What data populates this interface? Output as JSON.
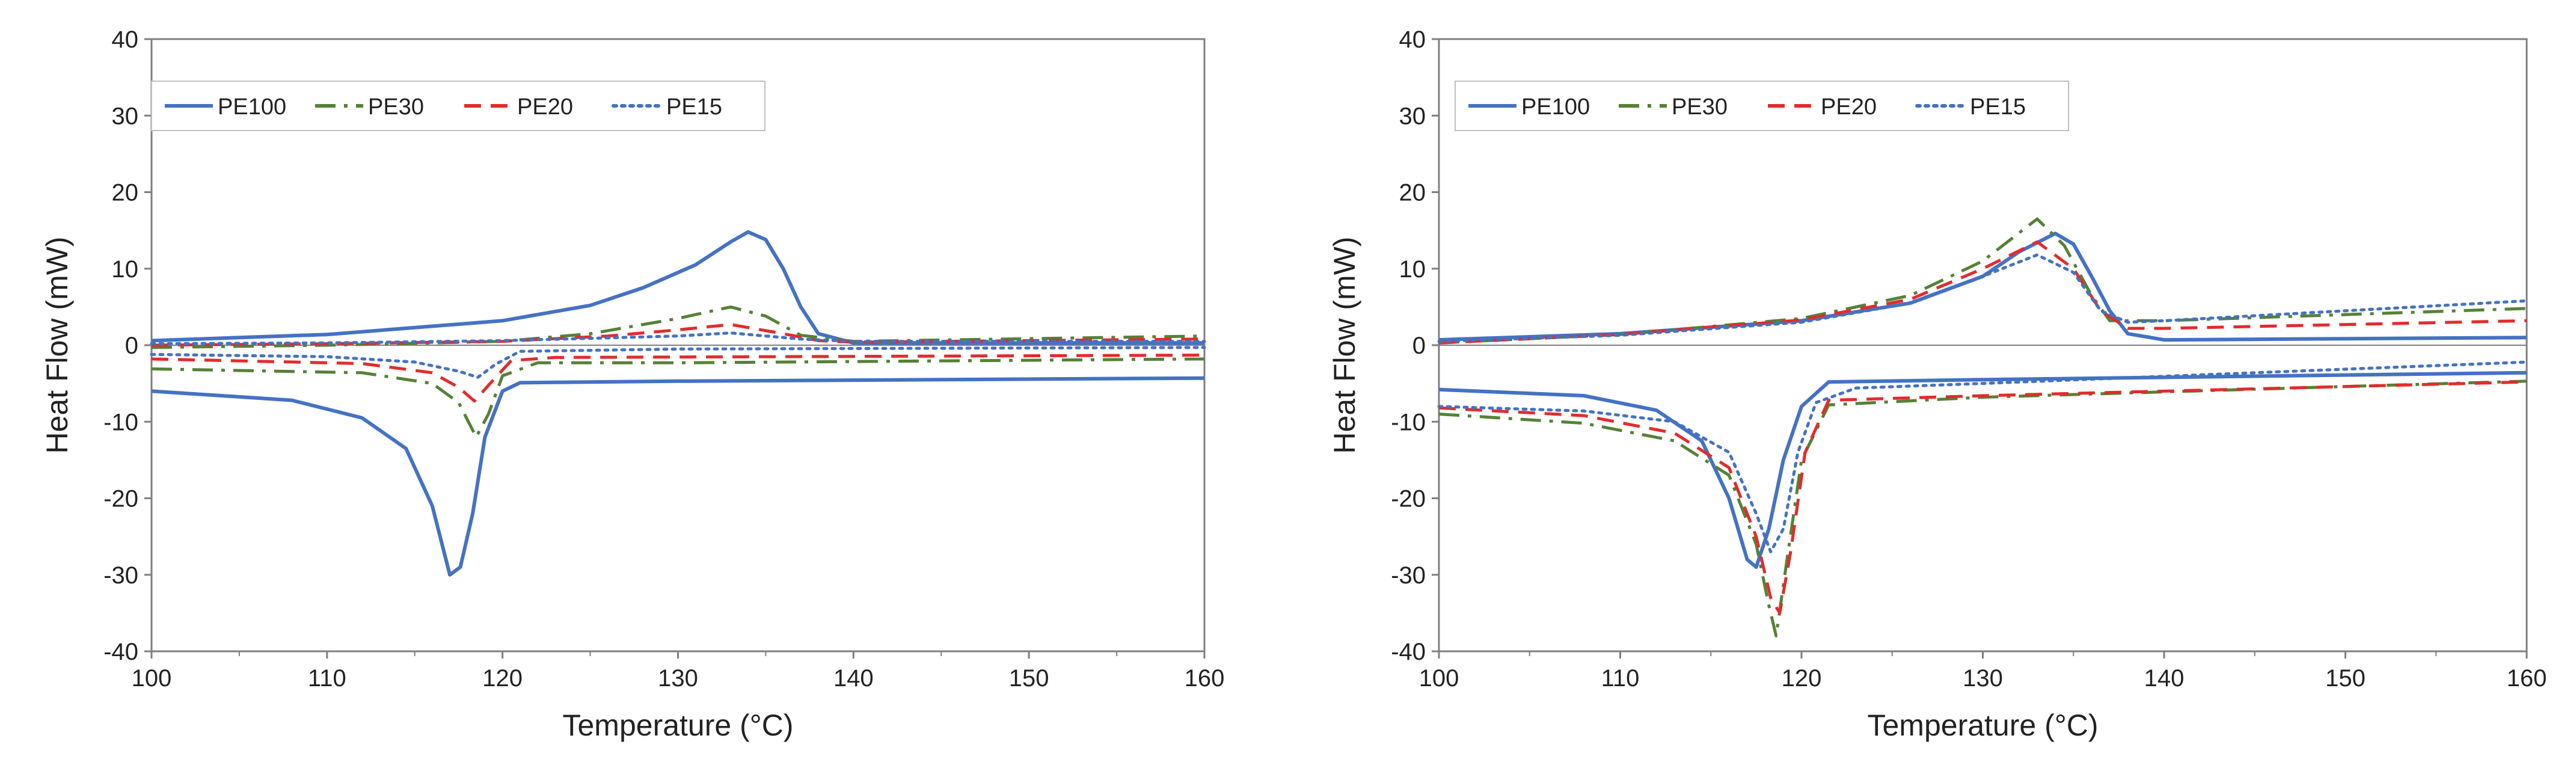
{
  "colors": {
    "PE100": "#4472c4",
    "PE30": "#548235",
    "PE20": "#e32b2b",
    "PE15": "#4472c4",
    "frame": "#7f7f7f"
  },
  "chart_data": [
    {
      "type": "line",
      "title": "",
      "xlabel": "Temperature (°C)",
      "ylabel": "Heat Flow (mW)",
      "xlim": [
        100,
        160
      ],
      "ylim": [
        -40,
        40
      ],
      "xticks": [
        100,
        110,
        120,
        130,
        140,
        150,
        160
      ],
      "yticks": [
        -40,
        -30,
        -20,
        -10,
        0,
        10,
        20,
        30,
        40
      ],
      "legend": [
        "PE100",
        "PE30",
        "PE20",
        "PE15"
      ],
      "legend_position": "top-left",
      "series": [
        {
          "name": "PE100",
          "style": "solid",
          "segments": [
            [
              [
                100,
                0.6
              ],
              [
                110,
                1.4
              ],
              [
                120,
                3.2
              ],
              [
                125,
                5.2
              ],
              [
                128,
                7.5
              ],
              [
                131,
                10.5
              ],
              [
                133,
                13.5
              ],
              [
                134,
                14.8
              ],
              [
                135,
                13.8
              ],
              [
                136,
                10
              ],
              [
                137,
                5
              ],
              [
                138,
                1.5
              ],
              [
                140,
                0.3
              ],
              [
                160,
                0.3
              ]
            ],
            [
              [
                100,
                -6.0
              ],
              [
                108,
                -7.2
              ],
              [
                112,
                -9.5
              ],
              [
                114.5,
                -13.5
              ],
              [
                116,
                -21
              ],
              [
                117,
                -30
              ],
              [
                117.6,
                -29
              ],
              [
                118.3,
                -22
              ],
              [
                119,
                -12
              ],
              [
                120,
                -6
              ],
              [
                121,
                -4.9
              ],
              [
                130,
                -4.7
              ],
              [
                160,
                -4.3
              ]
            ]
          ]
        },
        {
          "name": "PE30",
          "style": "dashdot",
          "segments": [
            [
              [
                100,
                -0.3
              ],
              [
                110,
                0
              ],
              [
                120,
                0.5
              ],
              [
                125,
                1.5
              ],
              [
                130,
                3.5
              ],
              [
                133,
                5.0
              ],
              [
                135,
                3.8
              ],
              [
                137,
                1.3
              ],
              [
                140,
                0.5
              ],
              [
                160,
                1.2
              ]
            ],
            [
              [
                100,
                -3.1
              ],
              [
                112,
                -3.6
              ],
              [
                116,
                -5.0
              ],
              [
                117.5,
                -7.5
              ],
              [
                118.5,
                -12
              ],
              [
                119.2,
                -9
              ],
              [
                120,
                -4
              ],
              [
                122,
                -2.3
              ],
              [
                130,
                -2.3
              ],
              [
                160,
                -1.8
              ]
            ]
          ]
        },
        {
          "name": "PE20",
          "style": "dashed",
          "segments": [
            [
              [
                100,
                0
              ],
              [
                110,
                0.2
              ],
              [
                120,
                0.5
              ],
              [
                126,
                1.2
              ],
              [
                130,
                2.0
              ],
              [
                133,
                2.7
              ],
              [
                136,
                1.5
              ],
              [
                138,
                0.6
              ],
              [
                140,
                0.4
              ],
              [
                160,
                0.8
              ]
            ],
            [
              [
                100,
                -1.8
              ],
              [
                112,
                -2.4
              ],
              [
                116,
                -3.6
              ],
              [
                117.5,
                -5.5
              ],
              [
                118.4,
                -7.3
              ],
              [
                119.3,
                -5
              ],
              [
                120.5,
                -2
              ],
              [
                123,
                -1.6
              ],
              [
                160,
                -1.3
              ]
            ]
          ]
        },
        {
          "name": "PE15",
          "style": "dotted",
          "segments": [
            [
              [
                100,
                0.2
              ],
              [
                110,
                0.3
              ],
              [
                120,
                0.6
              ],
              [
                130,
                1.2
              ],
              [
                133,
                1.6
              ],
              [
                137,
                0.8
              ],
              [
                140,
                0.5
              ],
              [
                160,
                0.5
              ]
            ],
            [
              [
                100,
                -1.2
              ],
              [
                110,
                -1.5
              ],
              [
                115,
                -2.2
              ],
              [
                117.5,
                -3.4
              ],
              [
                118.6,
                -4.2
              ],
              [
                119.6,
                -2.5
              ],
              [
                121,
                -0.8
              ],
              [
                130,
                -0.5
              ],
              [
                160,
                -0.3
              ]
            ]
          ]
        }
      ]
    },
    {
      "type": "line",
      "title": "",
      "xlabel": "Temperature (°C)",
      "ylabel": "Heat Flow (mW)",
      "xlim": [
        100,
        160
      ],
      "ylim": [
        -40,
        40
      ],
      "xticks": [
        100,
        110,
        120,
        130,
        140,
        150,
        160
      ],
      "yticks": [
        -40,
        -30,
        -20,
        -10,
        0,
        10,
        20,
        30,
        40
      ],
      "legend": [
        "PE100",
        "PE30",
        "PE20",
        "PE15"
      ],
      "legend_position": "top-left",
      "series": [
        {
          "name": "PE100",
          "style": "solid",
          "segments": [
            [
              [
                100,
                0.7
              ],
              [
                110,
                1.5
              ],
              [
                120,
                3.2
              ],
              [
                126,
                5.5
              ],
              [
                130,
                9.0
              ],
              [
                132,
                12.2
              ],
              [
                134,
                14.6
              ],
              [
                135,
                13.2
              ],
              [
                136,
                9.0
              ],
              [
                137,
                4.5
              ],
              [
                138,
                1.5
              ],
              [
                140,
                0.7
              ],
              [
                160,
                1.0
              ]
            ],
            [
              [
                100,
                -5.8
              ],
              [
                108,
                -6.6
              ],
              [
                112,
                -8.5
              ],
              [
                114.5,
                -12.5
              ],
              [
                116,
                -20
              ],
              [
                117,
                -28
              ],
              [
                117.5,
                -29
              ],
              [
                118.2,
                -24
              ],
              [
                119,
                -15
              ],
              [
                120,
                -8
              ],
              [
                121.5,
                -4.8
              ],
              [
                130,
                -4.5
              ],
              [
                160,
                -3.6
              ]
            ]
          ]
        },
        {
          "name": "PE30",
          "style": "dashdot",
          "segments": [
            [
              [
                100,
                0.3
              ],
              [
                110,
                1.4
              ],
              [
                120,
                3.5
              ],
              [
                126,
                6.5
              ],
              [
                130,
                11.0
              ],
              [
                133,
                16.5
              ],
              [
                134.5,
                13
              ],
              [
                136,
                6.5
              ],
              [
                137,
                3.2
              ],
              [
                140,
                3.2
              ],
              [
                160,
                4.8
              ]
            ],
            [
              [
                100,
                -9.0
              ],
              [
                108,
                -10.2
              ],
              [
                113,
                -12.5
              ],
              [
                116,
                -17
              ],
              [
                117.5,
                -26
              ],
              [
                118.2,
                -34
              ],
              [
                118.6,
                -38
              ],
              [
                119.2,
                -28
              ],
              [
                120,
                -15
              ],
              [
                121.5,
                -7.8
              ],
              [
                130,
                -6.8
              ],
              [
                160,
                -4.7
              ]
            ]
          ]
        },
        {
          "name": "PE20",
          "style": "dashed",
          "segments": [
            [
              [
                100,
                0.3
              ],
              [
                110,
                1.4
              ],
              [
                120,
                3.3
              ],
              [
                126,
                6.0
              ],
              [
                130,
                10.0
              ],
              [
                133,
                13.5
              ],
              [
                135,
                10
              ],
              [
                136.5,
                4.5
              ],
              [
                138,
                2.2
              ],
              [
                140,
                2.2
              ],
              [
                160,
                3.2
              ]
            ],
            [
              [
                100,
                -8.2
              ],
              [
                108,
                -9.2
              ],
              [
                113,
                -11.5
              ],
              [
                116,
                -16
              ],
              [
                117.5,
                -25
              ],
              [
                118.3,
                -33
              ],
              [
                118.8,
                -35
              ],
              [
                119.4,
                -27
              ],
              [
                120.2,
                -14
              ],
              [
                121.5,
                -7.2
              ],
              [
                130,
                -6.6
              ],
              [
                160,
                -4.8
              ]
            ]
          ]
        },
        {
          "name": "PE15",
          "style": "dotted",
          "segments": [
            [
              [
                100,
                0.5
              ],
              [
                110,
                1.3
              ],
              [
                120,
                3.0
              ],
              [
                126,
                5.5
              ],
              [
                130,
                9.0
              ],
              [
                133,
                11.8
              ],
              [
                135,
                9.5
              ],
              [
                136.5,
                4.5
              ],
              [
                138,
                3.0
              ],
              [
                140,
                3.2
              ],
              [
                160,
                5.8
              ]
            ],
            [
              [
                100,
                -8.0
              ],
              [
                108,
                -8.6
              ],
              [
                113,
                -10
              ],
              [
                116,
                -14
              ],
              [
                117.5,
                -22
              ],
              [
                118.3,
                -27
              ],
              [
                119,
                -24
              ],
              [
                119.8,
                -14
              ],
              [
                120.8,
                -7.5
              ],
              [
                123,
                -5.6
              ],
              [
                130,
                -5.0
              ],
              [
                160,
                -2.2
              ]
            ]
          ]
        }
      ]
    }
  ]
}
